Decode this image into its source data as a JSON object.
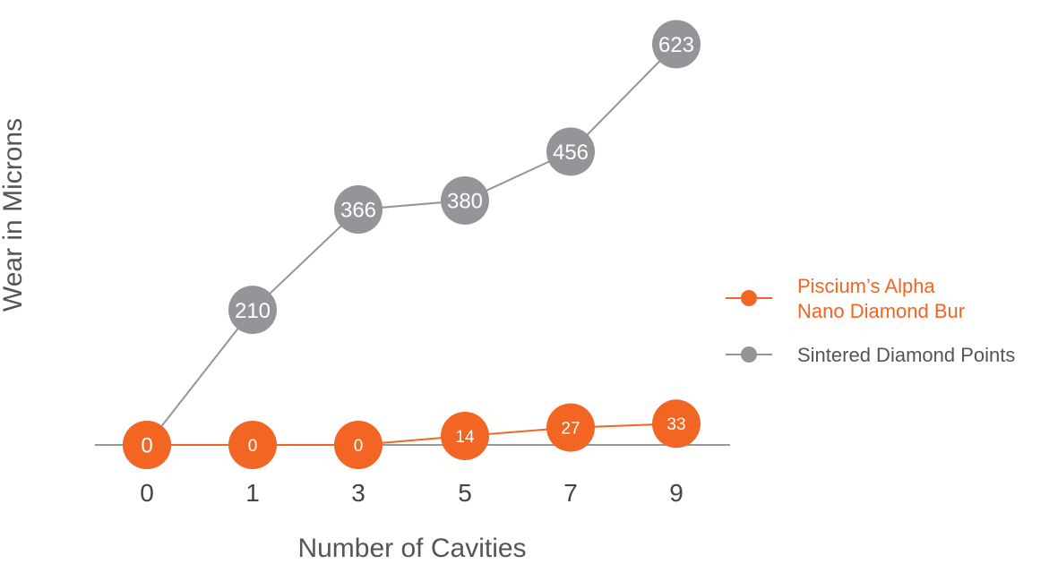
{
  "chart_data": {
    "type": "line",
    "xlabel": "Number of Cavities",
    "ylabel": "Wear in Microns",
    "categories": [
      "0",
      "1",
      "3",
      "5",
      "7",
      "9"
    ],
    "ylim": [
      0,
      650
    ],
    "grid": false,
    "legend_position": "right",
    "series": [
      {
        "name": "Piscium’s Alpha Nano Diamond Bur",
        "legend_lines": [
          "Piscium’s Alpha",
          "Nano Diamond Bur"
        ],
        "color": "#f26522",
        "values": [
          0,
          0,
          0,
          14,
          27,
          33
        ]
      },
      {
        "name": "Sintered Diamond Points",
        "legend_lines": [
          "Sintered Diamond Points"
        ],
        "color": "#939598",
        "values": [
          0,
          210,
          366,
          380,
          456,
          623
        ]
      }
    ]
  }
}
